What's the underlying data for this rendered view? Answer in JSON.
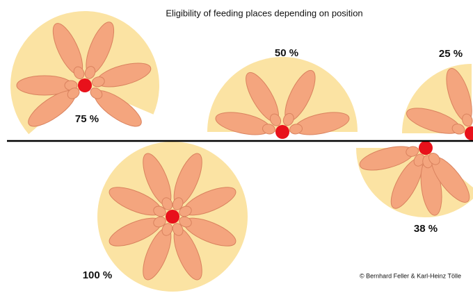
{
  "title": "Eligibility of feeding places depending on position",
  "stations": [
    {
      "label": "75 %"
    },
    {
      "label": "50 %"
    },
    {
      "label": "25 %"
    },
    {
      "label": "38 %"
    },
    {
      "label": "100 %"
    }
  ],
  "copyright": "© Bernhard Feller & Karl-Heinz Tölle"
}
